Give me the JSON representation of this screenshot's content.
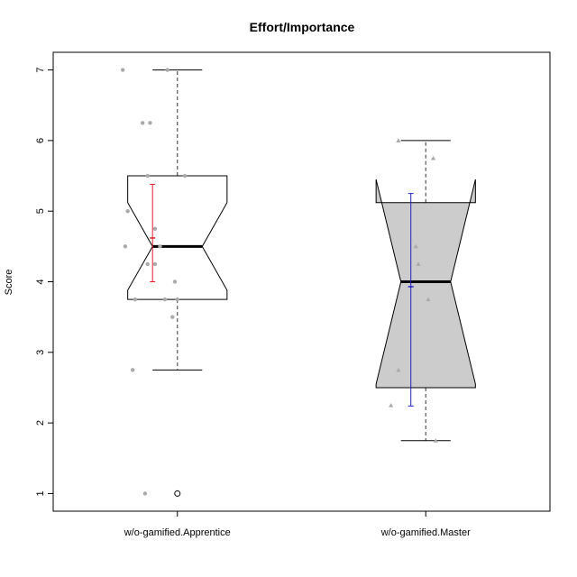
{
  "chart_data": {
    "type": "boxplot",
    "title": "Effort/Importance",
    "ylabel": "Score",
    "xlabel": "",
    "ylim": [
      0.75,
      7.25
    ],
    "yticks": [
      1,
      2,
      3,
      4,
      5,
      6,
      7
    ],
    "grid": false,
    "notched": true,
    "categories": [
      "w/o-gamified.Apprentice",
      "w/o-gamified.Master"
    ],
    "boxes": [
      {
        "name": "w/o-gamified.Apprentice",
        "fill": "#ffffff",
        "whisker_low": 2.75,
        "q1": 3.75,
        "median": 4.5,
        "q3": 5.5,
        "whisker_high": 7.0,
        "notch_low": 3.88,
        "notch_high": 5.12,
        "outliers": [
          1.0
        ]
      },
      {
        "name": "w/o-gamified.Master",
        "fill": "#cccccc",
        "whisker_low": 1.75,
        "q1": 2.5,
        "median": 4.0,
        "q3": 5.12,
        "whisker_high": 6.0,
        "notch_low": 2.55,
        "notch_high": 5.45,
        "outliers": []
      }
    ],
    "jitter_points": [
      {
        "group": "w/o-gamified.Apprentice",
        "shape": "circle",
        "color": "#aaaaaa",
        "points": [
          {
            "x": 0.78,
            "y": 7.0
          },
          {
            "x": 0.96,
            "y": 7.0
          },
          {
            "x": 0.86,
            "y": 6.25
          },
          {
            "x": 0.89,
            "y": 6.25
          },
          {
            "x": 0.88,
            "y": 5.5
          },
          {
            "x": 1.03,
            "y": 5.5
          },
          {
            "x": 0.8,
            "y": 5.0
          },
          {
            "x": 0.91,
            "y": 4.75
          },
          {
            "x": 0.79,
            "y": 4.5
          },
          {
            "x": 0.93,
            "y": 4.5
          },
          {
            "x": 0.88,
            "y": 4.25
          },
          {
            "x": 0.91,
            "y": 4.25
          },
          {
            "x": 0.99,
            "y": 4.0
          },
          {
            "x": 0.83,
            "y": 3.75
          },
          {
            "x": 0.95,
            "y": 3.75
          },
          {
            "x": 1.0,
            "y": 3.75
          },
          {
            "x": 0.98,
            "y": 3.5
          },
          {
            "x": 0.82,
            "y": 2.75
          },
          {
            "x": 0.87,
            "y": 1.0
          }
        ]
      },
      {
        "group": "w/o-gamified.Master",
        "shape": "triangle",
        "color": "#aaaaaa",
        "points": [
          {
            "x": 1.89,
            "y": 6.0
          },
          {
            "x": 2.03,
            "y": 5.75
          },
          {
            "x": 1.96,
            "y": 4.5
          },
          {
            "x": 1.97,
            "y": 4.25
          },
          {
            "x": 2.01,
            "y": 3.75
          },
          {
            "x": 1.89,
            "y": 2.75
          },
          {
            "x": 1.86,
            "y": 2.25
          },
          {
            "x": 2.04,
            "y": 1.75
          }
        ]
      }
    ],
    "mean_ci": [
      {
        "group": "w/o-gamified.Apprentice",
        "x": 0.9,
        "mean": 4.62,
        "lower": 4.0,
        "upper": 5.38,
        "color": "#e0202a"
      },
      {
        "group": "w/o-gamified.Master",
        "x": 1.94,
        "mean": 3.93,
        "lower": 2.24,
        "upper": 5.25,
        "color": "#2020c0"
      }
    ]
  }
}
